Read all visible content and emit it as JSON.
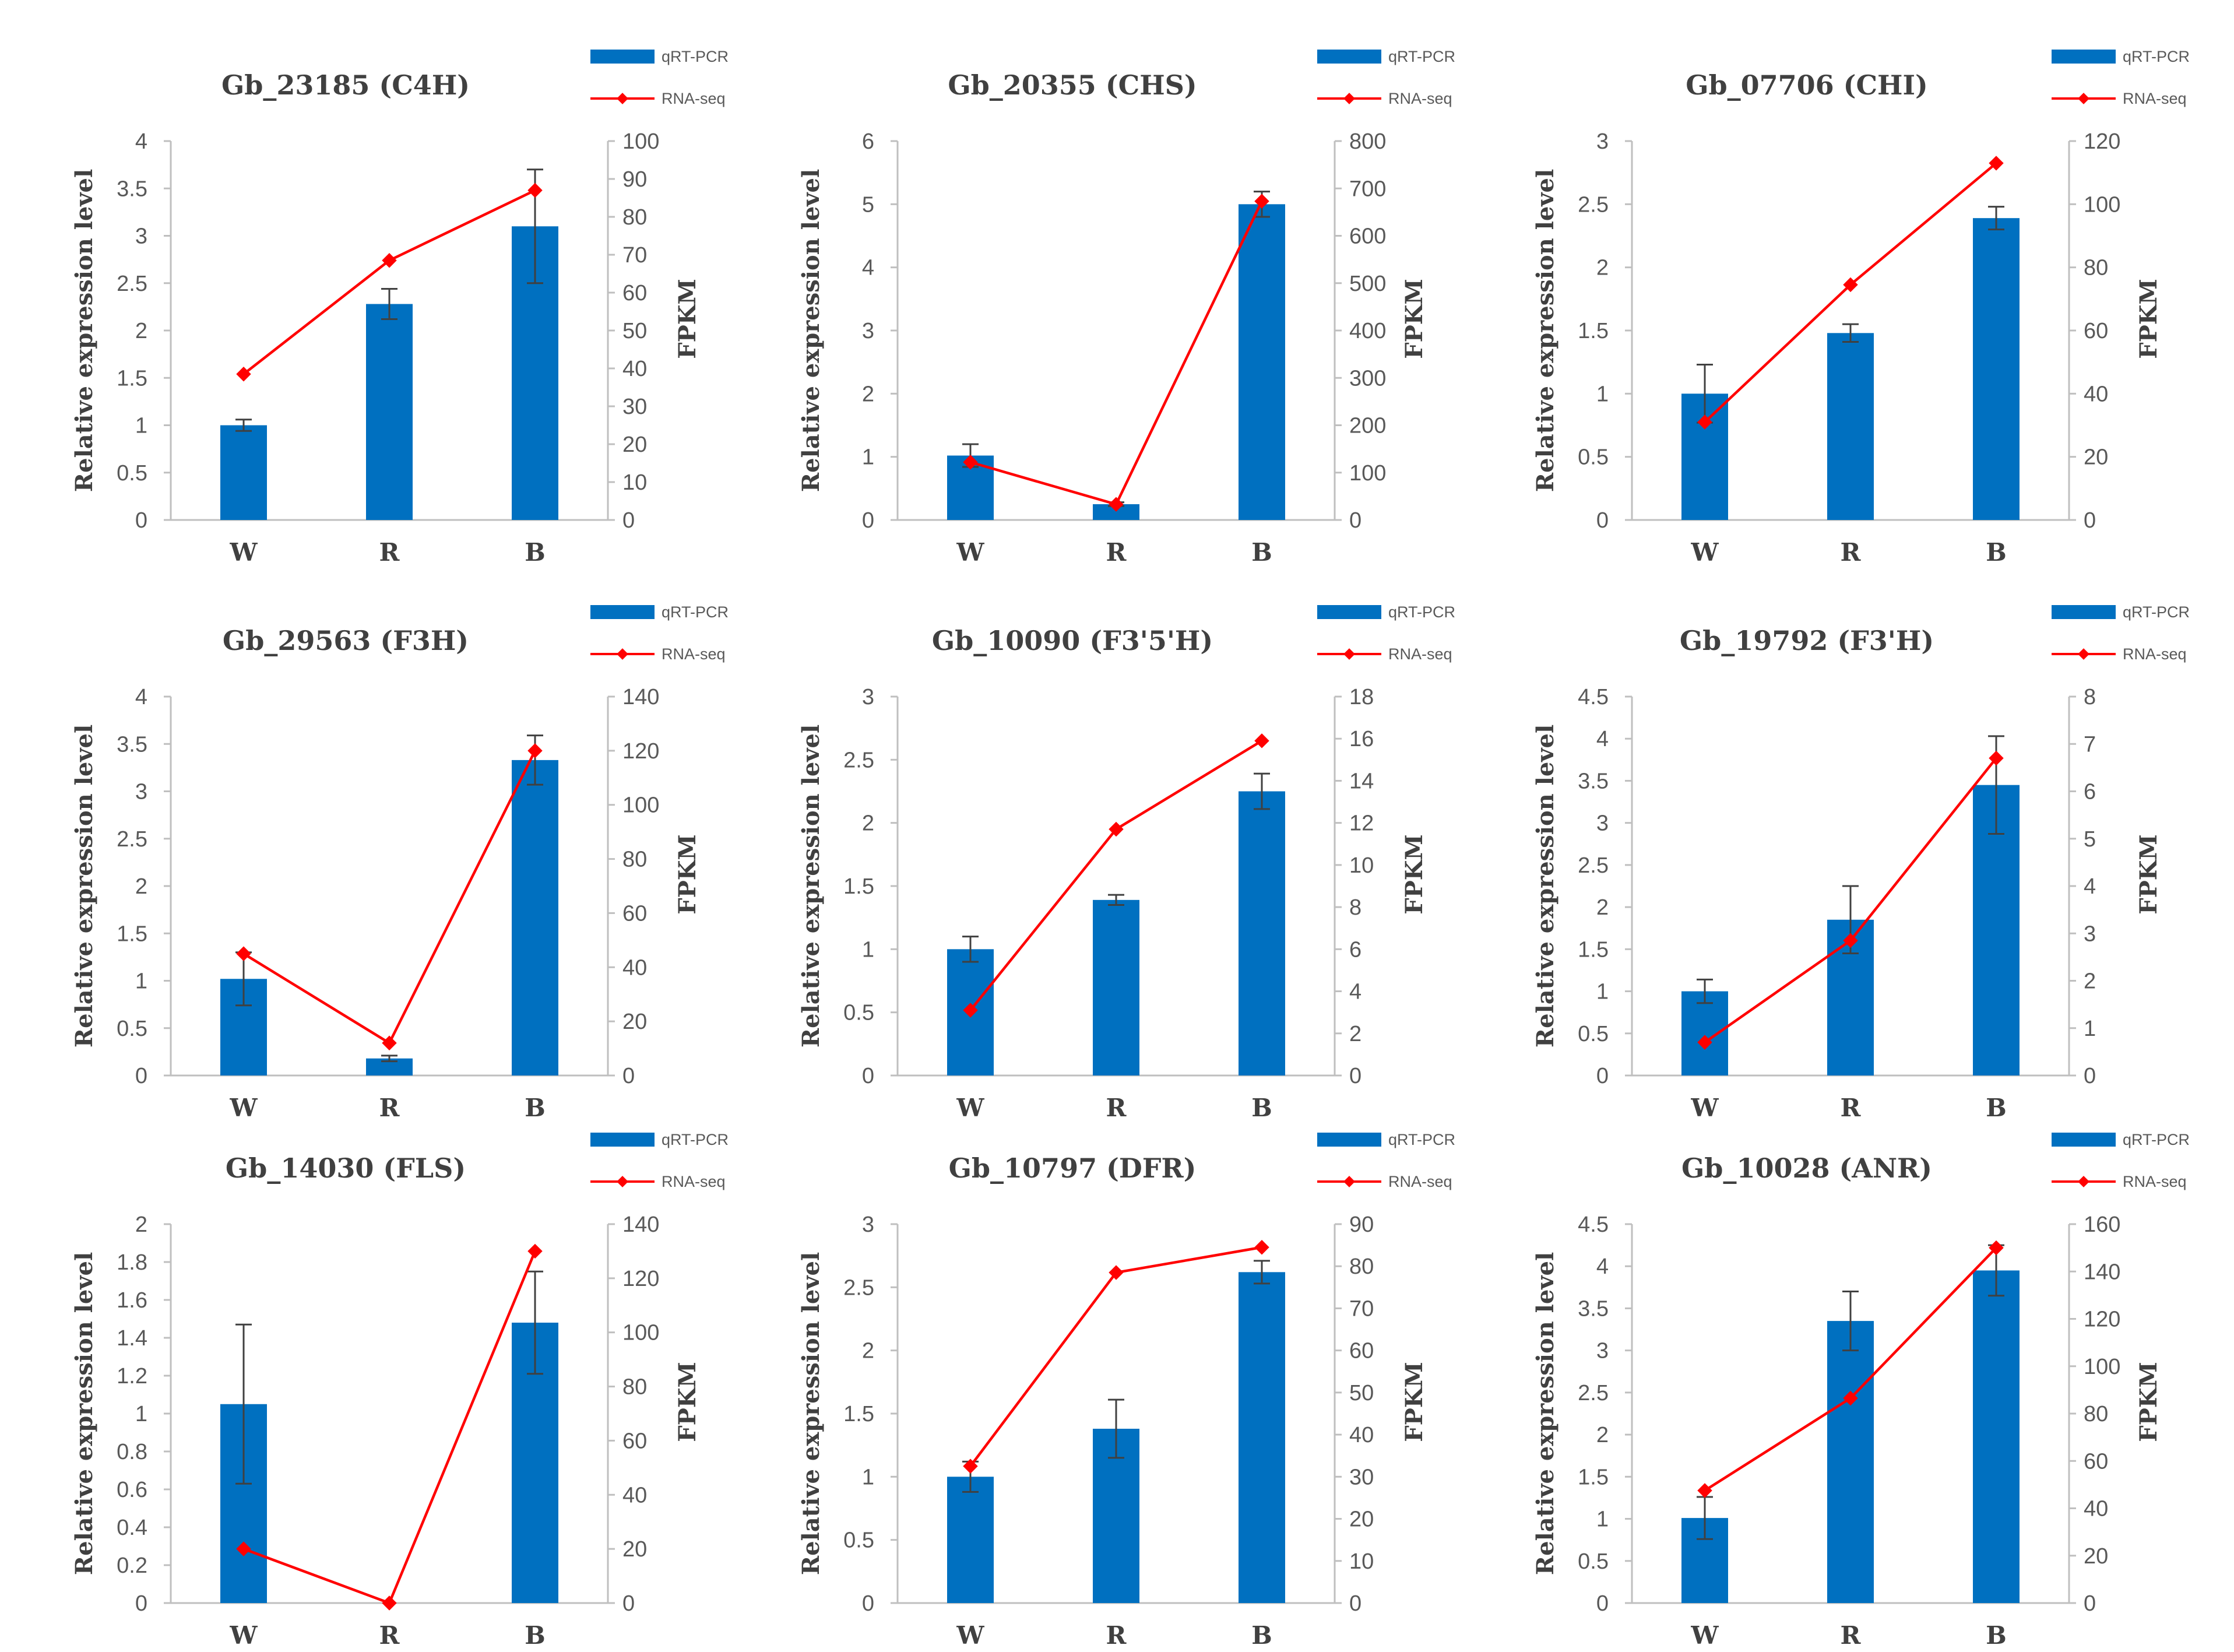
{
  "colors": {
    "bar": "#0070c0",
    "line": "#ff0000",
    "axis": "#bfbfbf",
    "error": "#404040"
  },
  "legend": {
    "bar_label": "qRT-PCR",
    "line_label": "RNA-seq"
  },
  "chart_data": [
    {
      "type": "bar+line",
      "title": "Gb_23185 (C4H)",
      "categories": [
        "W",
        "R",
        "B"
      ],
      "ylabel": "Relative expression level",
      "y2label": "FPKM",
      "ylim": [
        0,
        4
      ],
      "yticks": [
        "0",
        "0.5",
        "1",
        "1.5",
        "2",
        "2.5",
        "3",
        "3.5",
        "4"
      ],
      "y2lim": [
        0,
        100
      ],
      "y2ticks": [
        "0",
        "10",
        "20",
        "30",
        "40",
        "50",
        "60",
        "70",
        "80",
        "90",
        "100"
      ],
      "series": [
        {
          "name": "qRT-PCR",
          "axis": "left",
          "values": [
            1.0,
            2.28,
            3.1
          ],
          "errors": [
            0.06,
            0.16,
            0.6
          ]
        },
        {
          "name": "RNA-seq",
          "axis": "right",
          "values": [
            38.5,
            68.5,
            87
          ]
        }
      ]
    },
    {
      "type": "bar+line",
      "title": "Gb_20355 (CHS)",
      "categories": [
        "W",
        "R",
        "B"
      ],
      "ylabel": "Relative expression level",
      "y2label": "FPKM",
      "ylim": [
        0,
        6
      ],
      "yticks": [
        "0",
        "1",
        "2",
        "3",
        "4",
        "5",
        "6"
      ],
      "y2lim": [
        0,
        800
      ],
      "y2ticks": [
        "0",
        "100",
        "200",
        "300",
        "400",
        "500",
        "600",
        "700",
        "800"
      ],
      "series": [
        {
          "name": "qRT-PCR",
          "axis": "left",
          "values": [
            1.02,
            0.25,
            5.0
          ],
          "errors": [
            0.18,
            0.03,
            0.2
          ]
        },
        {
          "name": "RNA-seq",
          "axis": "right",
          "values": [
            122,
            33,
            673
          ]
        }
      ]
    },
    {
      "type": "bar+line",
      "title": "Gb_07706 (CHI)",
      "categories": [
        "W",
        "R",
        "B"
      ],
      "ylabel": "Relative expression level",
      "y2label": "FPKM",
      "ylim": [
        0,
        3
      ],
      "yticks": [
        "0",
        "0.5",
        "1",
        "1.5",
        "2",
        "2.5",
        "3"
      ],
      "y2lim": [
        0,
        120
      ],
      "y2ticks": [
        "0",
        "20",
        "40",
        "60",
        "80",
        "100",
        "120"
      ],
      "series": [
        {
          "name": "qRT-PCR",
          "axis": "left",
          "values": [
            1.0,
            1.48,
            2.39
          ],
          "errors": [
            0.23,
            0.07,
            0.09
          ]
        },
        {
          "name": "RNA-seq",
          "axis": "right",
          "values": [
            31,
            74.5,
            113
          ]
        }
      ]
    },
    {
      "type": "bar+line",
      "title": "Gb_29563 (F3H)",
      "categories": [
        "W",
        "R",
        "B"
      ],
      "ylabel": "Relative expression level",
      "y2label": "FPKM",
      "ylim": [
        0,
        4
      ],
      "yticks": [
        "0",
        "0.5",
        "1",
        "1.5",
        "2",
        "2.5",
        "3",
        "3.5",
        "4"
      ],
      "y2lim": [
        0,
        140
      ],
      "y2ticks": [
        "0",
        "20",
        "40",
        "60",
        "80",
        "100",
        "120",
        "140"
      ],
      "series": [
        {
          "name": "qRT-PCR",
          "axis": "left",
          "values": [
            1.02,
            0.18,
            3.33
          ],
          "errors": [
            0.28,
            0.03,
            0.26
          ]
        },
        {
          "name": "RNA-seq",
          "axis": "right",
          "values": [
            45,
            12,
            120
          ]
        }
      ]
    },
    {
      "type": "bar+line",
      "title": "Gb_10090 (F3'5'H)",
      "categories": [
        "W",
        "R",
        "B"
      ],
      "ylabel": "Relative expression level",
      "y2label": "FPKM",
      "ylim": [
        0,
        3
      ],
      "yticks": [
        "0",
        "0.5",
        "1",
        "1.5",
        "2",
        "2.5",
        "3"
      ],
      "y2lim": [
        0,
        18
      ],
      "y2ticks": [
        "0",
        "2",
        "4",
        "6",
        "8",
        "10",
        "12",
        "14",
        "16",
        "18"
      ],
      "series": [
        {
          "name": "qRT-PCR",
          "axis": "left",
          "values": [
            1.0,
            1.39,
            2.25
          ],
          "errors": [
            0.1,
            0.04,
            0.14
          ]
        },
        {
          "name": "RNA-seq",
          "axis": "right",
          "values": [
            3.1,
            11.7,
            15.9
          ]
        }
      ]
    },
    {
      "type": "bar+line",
      "title": "Gb_19792 (F3'H)",
      "categories": [
        "W",
        "R",
        "B"
      ],
      "ylabel": "Relative expression level",
      "y2label": "FPKM",
      "ylim": [
        0,
        4.5
      ],
      "yticks": [
        "0",
        "0.5",
        "1",
        "1.5",
        "2",
        "2.5",
        "3",
        "3.5",
        "4",
        "4.5"
      ],
      "y2lim": [
        0,
        8
      ],
      "y2ticks": [
        "0",
        "1",
        "2",
        "3",
        "4",
        "5",
        "6",
        "7",
        "8"
      ],
      "series": [
        {
          "name": "qRT-PCR",
          "axis": "left",
          "values": [
            1.0,
            1.85,
            3.45
          ],
          "errors": [
            0.14,
            0.4,
            0.58
          ]
        },
        {
          "name": "RNA-seq",
          "axis": "right",
          "values": [
            0.7,
            2.85,
            6.7
          ]
        }
      ]
    },
    {
      "type": "bar+line",
      "title": "Gb_14030 (FLS)",
      "categories": [
        "W",
        "R",
        "B"
      ],
      "ylabel": "Relative expression level",
      "y2label": "FPKM",
      "ylim": [
        0,
        2
      ],
      "yticks": [
        "0",
        "0.2",
        "0.4",
        "0.6",
        "0.8",
        "1",
        "1.2",
        "1.4",
        "1.6",
        "1.8",
        "2"
      ],
      "y2lim": [
        0,
        140
      ],
      "y2ticks": [
        "0",
        "20",
        "40",
        "60",
        "80",
        "100",
        "120",
        "140"
      ],
      "series": [
        {
          "name": "qRT-PCR",
          "axis": "left",
          "values": [
            1.05,
            0.0,
            1.48
          ],
          "errors": [
            0.42,
            0,
            0.27
          ]
        },
        {
          "name": "RNA-seq",
          "axis": "right",
          "values": [
            20,
            0,
            130
          ]
        }
      ]
    },
    {
      "type": "bar+line",
      "title": "Gb_10797 (DFR)",
      "categories": [
        "W",
        "R",
        "B"
      ],
      "ylabel": "Relative expression level",
      "y2label": "FPKM",
      "ylim": [
        0,
        3
      ],
      "yticks": [
        "0",
        "0.5",
        "1",
        "1.5",
        "2",
        "2.5",
        "3"
      ],
      "y2lim": [
        0,
        90
      ],
      "y2ticks": [
        "0",
        "10",
        "20",
        "30",
        "40",
        "50",
        "60",
        "70",
        "80",
        "90"
      ],
      "series": [
        {
          "name": "qRT-PCR",
          "axis": "left",
          "values": [
            1.0,
            1.38,
            2.62
          ],
          "errors": [
            0.12,
            0.23,
            0.09
          ]
        },
        {
          "name": "RNA-seq",
          "axis": "right",
          "values": [
            32.5,
            78.5,
            84.5
          ]
        }
      ]
    },
    {
      "type": "bar+line",
      "title": "Gb_10028 (ANR)",
      "categories": [
        "W",
        "R",
        "B"
      ],
      "ylabel": "Relative expression level",
      "y2label": "FPKM",
      "ylim": [
        0,
        4.5
      ],
      "yticks": [
        "0",
        "0.5",
        "1",
        "1.5",
        "2",
        "2.5",
        "3",
        "3.5",
        "4",
        "4.5"
      ],
      "y2lim": [
        0,
        160
      ],
      "y2ticks": [
        "0",
        "20",
        "40",
        "60",
        "80",
        "100",
        "120",
        "140",
        "160"
      ],
      "series": [
        {
          "name": "qRT-PCR",
          "axis": "left",
          "values": [
            1.01,
            3.35,
            3.95
          ],
          "errors": [
            0.25,
            0.35,
            0.3
          ]
        },
        {
          "name": "RNA-seq",
          "axis": "right",
          "values": [
            47.5,
            86.5,
            150
          ]
        }
      ]
    }
  ]
}
